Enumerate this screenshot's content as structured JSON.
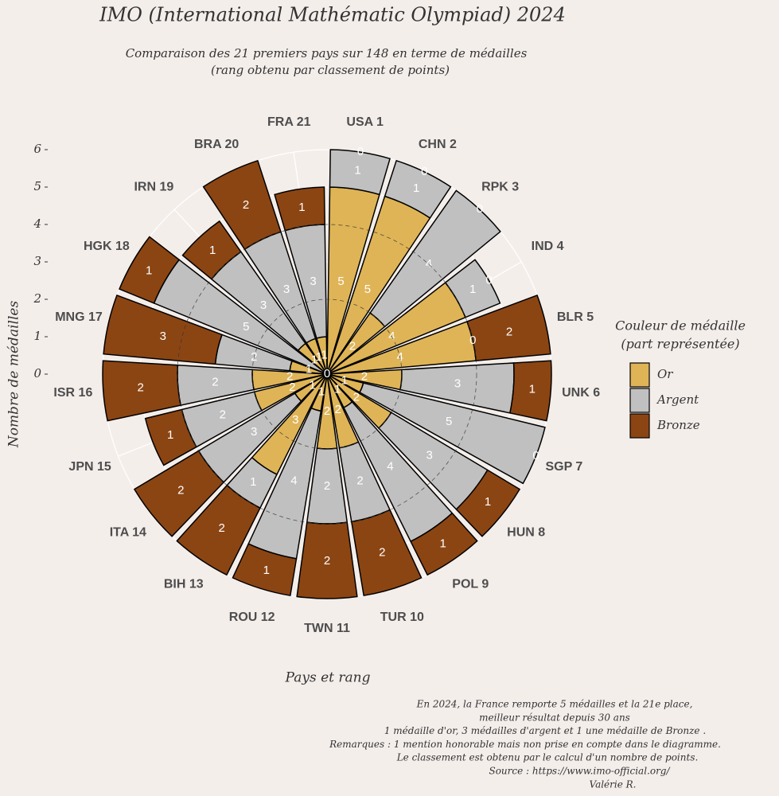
{
  "chart_data": {
    "type": "polar-stacked-bar",
    "title": "IMO (International Mathématic Olympiad) 2024",
    "subtitle": [
      "Comparaison des 21 premiers pays sur 148 en terme de médailles",
      "(rang obtenu par classement de points)"
    ],
    "x_label": "Pays et rang",
    "y_label": "Nombre de médailles",
    "legend_title": [
      "Couleur de médaille",
      "(part représentée)"
    ],
    "categories": [
      "USA 1",
      "CHN 2",
      "RPK 3",
      "IND 4",
      "BLR 5",
      "UNK 6",
      "SGP 7",
      "HUN 8",
      "POL 9",
      "TUR 10",
      "TWN 11",
      "ROU 12",
      "BIH 13",
      "ITA 14",
      "JPN 15",
      "ISR 16",
      "MNG 17",
      "HGK 18",
      "IRN 19",
      "BRA 20",
      "FRA 21"
    ],
    "series": [
      {
        "name": "Or",
        "color": "#dfb456",
        "values": [
          5,
          5,
          2,
          4,
          4,
          2,
          1,
          2,
          1,
          2,
          2,
          1,
          3,
          1,
          2,
          2,
          1,
          0,
          1,
          1,
          1
        ]
      },
      {
        "name": "Argent",
        "color": "#c0c0c0",
        "values": [
          1,
          1,
          4,
          1,
          0,
          3,
          5,
          3,
          4,
          2,
          2,
          4,
          1,
          3,
          2,
          2,
          2,
          5,
          3,
          3,
          3
        ]
      },
      {
        "name": "Bronze",
        "color": "#8b4513",
        "values": [
          0,
          0,
          0,
          0,
          2,
          1,
          0,
          1,
          1,
          2,
          2,
          1,
          2,
          2,
          1,
          2,
          3,
          1,
          1,
          2,
          1
        ]
      }
    ],
    "ylim": [
      0,
      6
    ],
    "yticks": [
      0,
      1,
      2,
      3,
      4,
      5,
      6
    ],
    "grid": true,
    "caption": [
      "En 2024, la France remporte 5 médailles et la 21e place,",
      "meilleur résultat depuis 30 ans",
      "1 médaille d'or, 3 médailles d'argent et 1 une médaille de Bronze .",
      "Remarques : 1 mention honorable mais non prise en compte dans le diagramme.",
      "Le classement est obtenu par le calcul d'un nombre de points.",
      "Source : https://www.imo-official.org/",
      "Valérie R."
    ]
  }
}
